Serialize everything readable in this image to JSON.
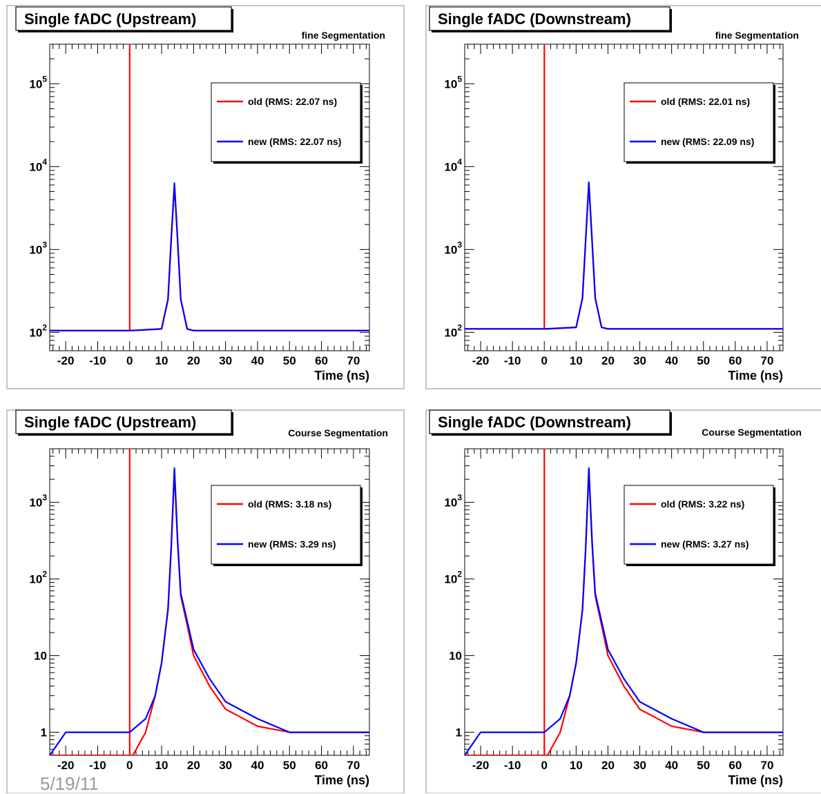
{
  "footer": {
    "date": "5/19/11"
  },
  "colors": {
    "old": "#ff0000",
    "new": "#0000ff",
    "frame": "#000000",
    "pad_bg": "#ffffff",
    "canvas_border": "#b4b4b4"
  },
  "chart_data": [
    {
      "type": "line",
      "title": "Single fADC (Upstream)",
      "subtitle": "fine Segmentation",
      "xlabel": "Time (ns)",
      "ylabel": "",
      "xlim": [
        -25,
        75
      ],
      "ylim": [
        60,
        300000
      ],
      "log_y": true,
      "x_ticks": [
        "-20",
        "-10",
        "0",
        "10",
        "20",
        "30",
        "40",
        "50",
        "60",
        "70"
      ],
      "y_ticks": [
        {
          "value": 100,
          "base": "10",
          "exp": "2"
        },
        {
          "value": 1000,
          "base": "10",
          "exp": "3"
        },
        {
          "value": 10000,
          "base": "10",
          "exp": "4"
        },
        {
          "value": 100000,
          "base": "10",
          "exp": "5"
        }
      ],
      "legend_position": "top-right",
      "series": [
        {
          "name": "old (RMS: 22.07 ns)",
          "color": "#ff0000",
          "x": [
            -25,
            -20,
            -10,
            -1,
            0,
            0,
            0,
            1,
            10,
            12,
            13,
            14,
            15,
            16,
            18,
            20,
            30,
            40,
            50,
            60,
            70,
            75
          ],
          "y": [
            105,
            105,
            105,
            105,
            105,
            290000,
            105,
            105,
            110,
            250,
            1300,
            6000,
            1300,
            250,
            110,
            105,
            105,
            105,
            105,
            105,
            105,
            105
          ]
        },
        {
          "name": "new (RMS: 22.07 ns)",
          "color": "#0000ff",
          "x": [
            -25,
            -20,
            -10,
            0,
            10,
            12,
            13,
            14,
            15,
            16,
            18,
            20,
            30,
            40,
            50,
            60,
            70,
            75
          ],
          "y": [
            105,
            105,
            105,
            105,
            110,
            250,
            1300,
            6300,
            1300,
            250,
            110,
            105,
            105,
            105,
            105,
            105,
            105,
            105
          ]
        }
      ]
    },
    {
      "type": "line",
      "title": "Single fADC (Downstream)",
      "subtitle": "fine Segmentation",
      "xlabel": "Time (ns)",
      "ylabel": "",
      "xlim": [
        -25,
        75
      ],
      "ylim": [
        60,
        300000
      ],
      "log_y": true,
      "x_ticks": [
        "-20",
        "-10",
        "0",
        "10",
        "20",
        "30",
        "40",
        "50",
        "60",
        "70"
      ],
      "y_ticks": [
        {
          "value": 100,
          "base": "10",
          "exp": "2"
        },
        {
          "value": 1000,
          "base": "10",
          "exp": "3"
        },
        {
          "value": 10000,
          "base": "10",
          "exp": "4"
        },
        {
          "value": 100000,
          "base": "10",
          "exp": "5"
        }
      ],
      "legend_position": "top-right",
      "series": [
        {
          "name": "old (RMS: 22.01 ns)",
          "color": "#ff0000",
          "x": [
            -25,
            -20,
            -10,
            -1,
            0,
            0,
            0,
            1,
            10,
            12,
            13,
            14,
            15,
            16,
            18,
            20,
            30,
            40,
            50,
            60,
            70,
            75
          ],
          "y": [
            110,
            110,
            110,
            110,
            110,
            290000,
            110,
            110,
            115,
            260,
            1300,
            6200,
            1300,
            260,
            115,
            110,
            110,
            110,
            110,
            110,
            110,
            110
          ]
        },
        {
          "name": "new (RMS: 22.09 ns)",
          "color": "#0000ff",
          "x": [
            -25,
            -20,
            -10,
            0,
            10,
            12,
            13,
            14,
            15,
            16,
            18,
            20,
            30,
            40,
            50,
            60,
            70,
            75
          ],
          "y": [
            110,
            110,
            110,
            110,
            115,
            260,
            1300,
            6500,
            1300,
            260,
            115,
            110,
            110,
            110,
            110,
            110,
            110,
            110
          ]
        }
      ]
    },
    {
      "type": "line",
      "title": "Single fADC (Upstream)",
      "subtitle": "Course Segmentation",
      "xlabel": "Time (ns)",
      "ylabel": "",
      "xlim": [
        -25,
        75
      ],
      "ylim": [
        0.5,
        5000
      ],
      "log_y": true,
      "x_ticks": [
        "-20",
        "-10",
        "0",
        "10",
        "20",
        "30",
        "40",
        "50",
        "60",
        "70"
      ],
      "y_ticks": [
        {
          "value": 1,
          "base": "1",
          "exp": ""
        },
        {
          "value": 10,
          "base": "10",
          "exp": ""
        },
        {
          "value": 100,
          "base": "10",
          "exp": "2"
        },
        {
          "value": 1000,
          "base": "10",
          "exp": "3"
        }
      ],
      "legend_position": "top-right",
      "series": [
        {
          "name": "old (RMS:  3.18 ns)",
          "color": "#ff0000",
          "x": [
            -25,
            -20,
            -10,
            -1,
            0,
            0,
            0,
            1,
            5,
            8,
            10,
            12,
            13,
            14,
            15,
            16,
            18,
            20,
            25,
            30,
            40,
            50,
            60,
            70,
            75
          ],
          "y": [
            0.5,
            0.5,
            0.5,
            0.5,
            0.5,
            5000,
            0.5,
            0.5,
            1,
            3,
            8,
            40,
            250,
            2600,
            300,
            60,
            25,
            10,
            4,
            2,
            1.2,
            1,
            1,
            1,
            1
          ]
        },
        {
          "name": "new (RMS:  3.29 ns)",
          "color": "#0000ff",
          "x": [
            -25,
            -20,
            -10,
            0,
            5,
            8,
            10,
            12,
            13,
            14,
            15,
            16,
            18,
            20,
            25,
            30,
            40,
            50,
            60,
            70,
            75
          ],
          "y": [
            0.5,
            1,
            1,
            1,
            1.5,
            3,
            8,
            40,
            250,
            2800,
            320,
            65,
            28,
            12,
            5,
            2.5,
            1.5,
            1,
            1,
            1,
            1
          ]
        }
      ]
    },
    {
      "type": "line",
      "title": "Single fADC (Downstream)",
      "subtitle": "Course Segmentation",
      "xlabel": "Time (ns)",
      "ylabel": "",
      "xlim": [
        -25,
        75
      ],
      "ylim": [
        0.5,
        5000
      ],
      "log_y": true,
      "x_ticks": [
        "-20",
        "-10",
        "0",
        "10",
        "20",
        "30",
        "40",
        "50",
        "60",
        "70"
      ],
      "y_ticks": [
        {
          "value": 1,
          "base": "1",
          "exp": ""
        },
        {
          "value": 10,
          "base": "10",
          "exp": ""
        },
        {
          "value": 100,
          "base": "10",
          "exp": "2"
        },
        {
          "value": 1000,
          "base": "10",
          "exp": "3"
        }
      ],
      "legend_position": "top-right",
      "series": [
        {
          "name": "old (RMS:  3.22 ns)",
          "color": "#ff0000",
          "x": [
            -25,
            -20,
            -10,
            -1,
            0,
            0,
            0,
            1,
            5,
            8,
            10,
            12,
            13,
            14,
            15,
            16,
            18,
            20,
            25,
            30,
            40,
            50,
            60,
            70,
            75
          ],
          "y": [
            0.5,
            0.5,
            0.5,
            0.5,
            0.5,
            5000,
            0.5,
            0.5,
            1,
            3,
            8,
            40,
            250,
            2600,
            300,
            60,
            25,
            10,
            4,
            2,
            1.2,
            1,
            1,
            1,
            1
          ]
        },
        {
          "name": "new (RMS:  3.27 ns)",
          "color": "#0000ff",
          "x": [
            -25,
            -20,
            -10,
            0,
            5,
            8,
            10,
            12,
            13,
            14,
            15,
            16,
            18,
            20,
            25,
            30,
            40,
            50,
            60,
            70,
            75
          ],
          "y": [
            0.5,
            1,
            1,
            1,
            1.5,
            3,
            8,
            40,
            250,
            2800,
            320,
            65,
            28,
            12,
            5,
            2.5,
            1.5,
            1,
            1,
            1,
            1
          ]
        }
      ]
    }
  ]
}
